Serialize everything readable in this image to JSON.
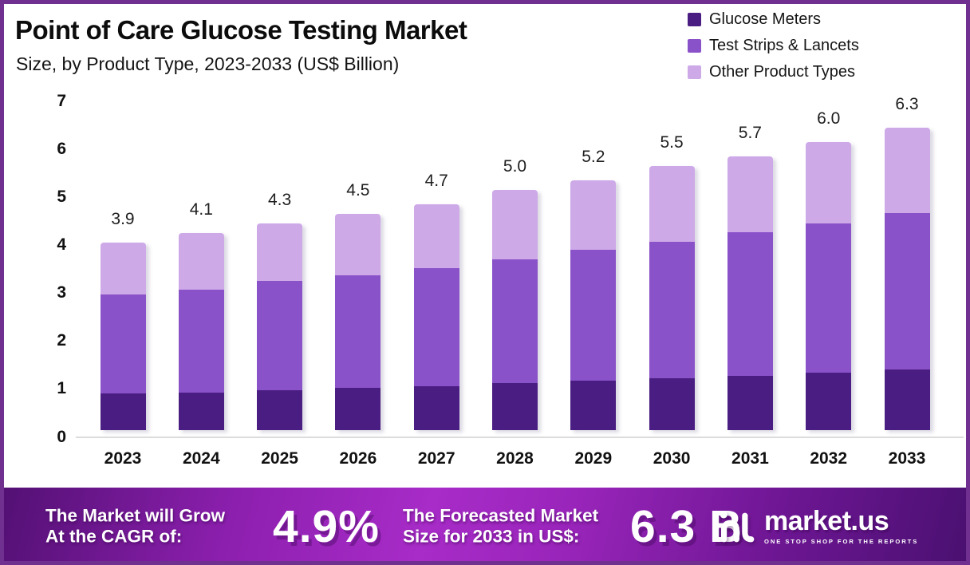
{
  "title": "Point of Care Glucose Testing Market",
  "subtitle": "Size, by Product Type, 2023-2033 (US$ Billion)",
  "colors": {
    "page_border": "#70308f",
    "axis_line": "#dcdcdc",
    "glucose_meters": "#4a1d82",
    "test_strips_lancets": "#8a52c9",
    "other_product_types": "#cda9e8",
    "banner_bright": "#a82cc8",
    "banner_dark": "#491070"
  },
  "chart_data": {
    "type": "bar",
    "stacked": true,
    "title": "Point of Care Glucose Testing Market",
    "subtitle": "Size, by Product Type, 2023-2033 (US$ Billion)",
    "xlabel": "",
    "ylabel": "US$ Billion",
    "ylim": [
      0,
      7
    ],
    "yticks": [
      0,
      1,
      2,
      3,
      4,
      5,
      6,
      7
    ],
    "grid": false,
    "legend_position": "top-right",
    "categories": [
      "2023",
      "2024",
      "2025",
      "2026",
      "2027",
      "2028",
      "2029",
      "2030",
      "2031",
      "2032",
      "2033"
    ],
    "series": [
      {
        "name": "Glucose Meters",
        "color": "#4a1d82",
        "values": [
          0.75,
          0.78,
          0.82,
          0.87,
          0.91,
          0.97,
          1.03,
          1.08,
          1.13,
          1.19,
          1.25
        ]
      },
      {
        "name": "Test Strips & Lancets",
        "color": "#8a52c9",
        "values": [
          2.07,
          2.14,
          2.28,
          2.35,
          2.47,
          2.58,
          2.73,
          2.85,
          2.99,
          3.12,
          3.27
        ]
      },
      {
        "name": "Other Product Types",
        "color": "#cda9e8",
        "values": [
          1.08,
          1.18,
          1.2,
          1.28,
          1.32,
          1.45,
          1.44,
          1.57,
          1.58,
          1.69,
          1.78
        ]
      }
    ],
    "totals": [
      3.9,
      4.1,
      4.3,
      4.5,
      4.7,
      5.0,
      5.2,
      5.5,
      5.7,
      6.0,
      6.3
    ]
  },
  "banner": {
    "cagr_label_line1": "The Market will Grow",
    "cagr_label_line2": "At the CAGR of:",
    "cagr_value": "4.9%",
    "forecast_label_line1": "The Forecasted Market",
    "forecast_label_line2": "Size for 2033 in US$:",
    "forecast_value": "6.3 B",
    "logo_name": "market.us",
    "logo_tagline": "ONE STOP SHOP FOR THE REPORTS"
  }
}
